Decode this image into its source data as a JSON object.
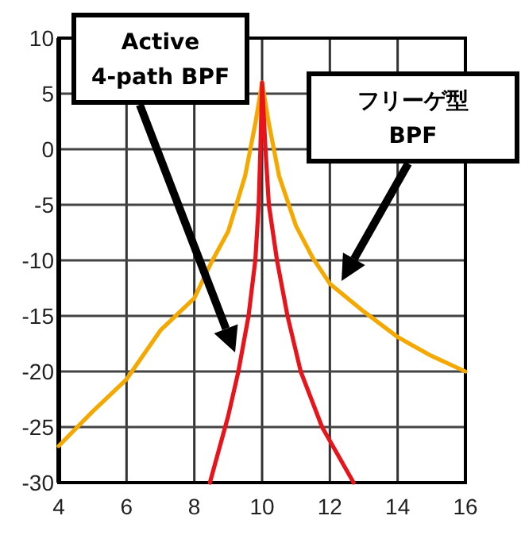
{
  "chart_data": {
    "type": "line",
    "xlim": [
      4,
      16
    ],
    "xticks": [
      4,
      6,
      8,
      10,
      12,
      14,
      16
    ],
    "ylim": [
      -30,
      10
    ],
    "yticks": [
      -30,
      -25,
      -20,
      -15,
      -10,
      -5,
      0,
      5,
      10
    ],
    "grid": true,
    "line_style": "solid",
    "series": [
      {
        "color": "#f5a800",
        "x": [
          4,
          5,
          6,
          7,
          8,
          8.5,
          9,
          9.5,
          9.8,
          10,
          10.2,
          10.5,
          11,
          11.5,
          12,
          13,
          14,
          15,
          16
        ],
        "values": [
          -26.7,
          -23.6,
          -20.7,
          -16.3,
          -13.4,
          -10.2,
          -7.4,
          -2.4,
          2.3,
          6,
          2.3,
          -2.4,
          -6.9,
          -9.8,
          -12.1,
          -14.6,
          -16.9,
          -18.6,
          -20
        ]
      },
      {
        "color": "#e8141c",
        "x": [
          8.46,
          9.0,
          9.3,
          9.6,
          9.8,
          9.9,
          9.95,
          10,
          10.1,
          10.2,
          10.44,
          10.75,
          11.14,
          11.77,
          12.7
        ],
        "values": [
          -30,
          -24,
          -20,
          -15,
          -10,
          -5,
          0,
          6,
          0,
          -5,
          -10,
          -15,
          -20,
          -25,
          -30
        ]
      }
    ],
    "annotations": [
      "Active\n4-path BPF",
      "フリーゲ型\nBPF"
    ]
  }
}
